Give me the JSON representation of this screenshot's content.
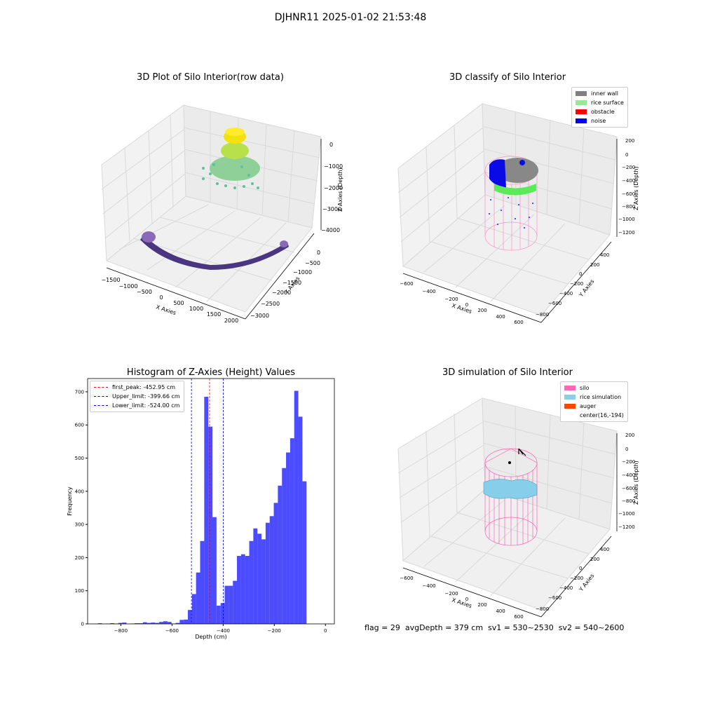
{
  "suptitle": "DJHNR11 2025-01-02 21:53:48",
  "panel1": {
    "title": "3D Plot of Silo Interior(row data)",
    "xlabel": "X Axies",
    "ylabel": "Y Axies",
    "zlabel": "Z Axies (Depth)",
    "xticks": [
      "−1500",
      "−1000",
      "−500",
      "0",
      "500",
      "1000",
      "1500",
      "2000"
    ],
    "yticks": [
      "0",
      "−500",
      "−1000",
      "−1500",
      "−2000",
      "−2500",
      "−3000"
    ],
    "zticks": [
      "0",
      "−1000",
      "−2000",
      "−3000",
      "−4000"
    ]
  },
  "panel2": {
    "title": "3D classify of Silo Interior",
    "xlabel": "X Axies",
    "ylabel": "Y Axies",
    "zlabel": "Z Axies (Depth)",
    "xticks": [
      "−600",
      "−400",
      "−200",
      "0",
      "200",
      "400",
      "600"
    ],
    "yticks": [
      "400",
      "200",
      "0",
      "−200",
      "−400",
      "−600",
      "−800"
    ],
    "zticks": [
      "200",
      "0",
      "−200",
      "−400",
      "−600",
      "−800",
      "−1000",
      "−1200"
    ],
    "legend": [
      {
        "label": "inner wall",
        "color": "#808080"
      },
      {
        "label": "rice surface",
        "color": "#90EE90"
      },
      {
        "label": "obstacle",
        "color": "#FF0000"
      },
      {
        "label": "noise",
        "color": "#0000FF"
      }
    ]
  },
  "panel4": {
    "title": "3D simulation of Silo Interior",
    "xlabel": "X Axies",
    "ylabel": "Y Axies",
    "zlabel": "Z Axies (Depth)",
    "xticks": [
      "−600",
      "−400",
      "−200",
      "0",
      "200",
      "400",
      "600"
    ],
    "yticks": [
      "400",
      "200",
      "0",
      "−200",
      "−400",
      "−600",
      "−800"
    ],
    "zticks": [
      "200",
      "0",
      "−200",
      "−400",
      "−600",
      "−800",
      "−1000",
      "−1200"
    ],
    "legend": [
      {
        "label": "silo",
        "color": "#FF69B4"
      },
      {
        "label": "rice simulation",
        "color": "#87CEEB"
      },
      {
        "label": "auger",
        "color": "#FF4500"
      },
      {
        "label": "center(16,-194)",
        "color": ""
      }
    ]
  },
  "flag_text": "flag = 29  avgDepth = 379 cm  sv1 = 530~2530  sv2 = 540~2600",
  "chart_data": {
    "type": "bar",
    "title": "Histogram of Z-Axies (Height) Values",
    "xlabel": "Depth (cm)",
    "ylabel": "Frequency",
    "xlim": [
      -930,
      35
    ],
    "ylim": [
      0,
      740
    ],
    "xticks": [
      -800,
      -600,
      -400,
      -200,
      0
    ],
    "yticks": [
      0,
      100,
      200,
      300,
      400,
      500,
      600,
      700
    ],
    "bar_width": 16,
    "bin_left": [
      -890,
      -874,
      -858,
      -842,
      -826,
      -810,
      -794,
      -778,
      -762,
      -746,
      -730,
      -714,
      -698,
      -682,
      -666,
      -650,
      -634,
      -618,
      -602,
      -586,
      -570,
      -554,
      -538,
      -522,
      -506,
      -490,
      -474,
      -458,
      -442,
      -426,
      -410,
      -394,
      -378,
      -362,
      -346,
      -330,
      -314,
      -298,
      -282,
      -266,
      -250,
      -234,
      -218,
      -202,
      -186,
      -170,
      -154,
      -138,
      -122,
      -106,
      -90,
      -74,
      -58,
      -42,
      -26,
      -10
    ],
    "values": [
      2,
      0,
      1,
      2,
      1,
      3,
      4,
      0,
      1,
      2,
      2,
      5,
      3,
      4,
      3,
      6,
      8,
      6,
      1,
      3,
      12,
      13,
      42,
      90,
      155,
      250,
      685,
      595,
      322,
      55,
      63,
      115,
      115,
      130,
      205,
      210,
      205,
      250,
      288,
      272,
      255,
      305,
      325,
      365,
      417,
      470,
      517,
      560,
      703,
      625,
      430,
      0,
      0,
      0,
      0,
      0
    ],
    "vlines": [
      {
        "label": "first_peak: -452.95 cm",
        "x": -452.95,
        "color": "#FF0000"
      },
      {
        "label": "Upper_limit: -399.66 cm",
        "x": -399.66,
        "color": "#0000FF"
      },
      {
        "label": "Lower_limit: -524.00 cm",
        "x": -524.0,
        "color": "#0000FF"
      }
    ]
  }
}
